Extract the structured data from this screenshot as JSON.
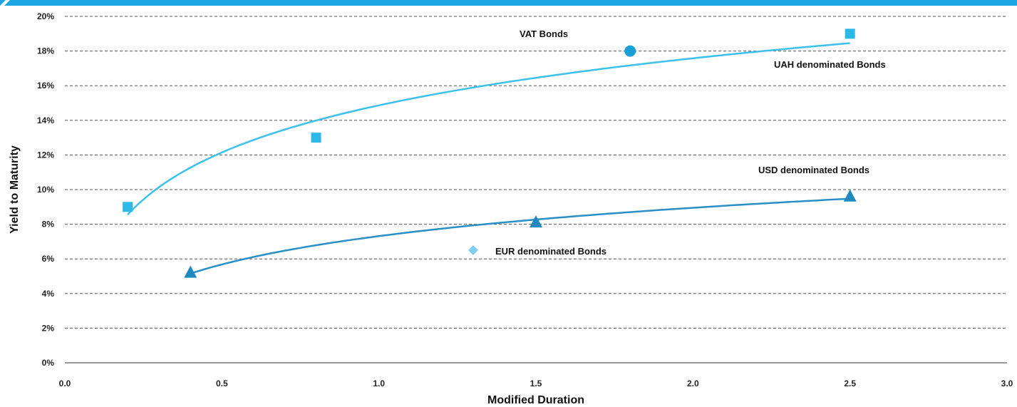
{
  "chart_data": {
    "type": "scatter",
    "xlabel": "Modified Duration",
    "ylabel": "Yield to Maturity",
    "xlim": [
      0,
      3
    ],
    "ylim": [
      0,
      20
    ],
    "x_ticks": [
      "0.0",
      "0.5",
      "1.0",
      "1.5",
      "2.0",
      "2.5",
      "3.0"
    ],
    "y_ticks": [
      "0%",
      "2%",
      "4%",
      "6%",
      "8%",
      "10%",
      "12%",
      "14%",
      "16%",
      "18%",
      "20%"
    ],
    "grid": "horizontal-dashed",
    "series": [
      {
        "name": "UAH denominated Bonds",
        "marker": "square",
        "color": "#2EB8E8",
        "points": [
          {
            "x": 0.2,
            "y": 9.0
          },
          {
            "x": 0.8,
            "y": 13.0
          },
          {
            "x": 2.5,
            "y": 19.0
          }
        ],
        "trend": {
          "type": "logarithmic",
          "x_from": 0.2,
          "x_to": 2.5,
          "color": "#3CC0EC"
        }
      },
      {
        "name": "VAT Bonds",
        "marker": "circle",
        "color": "#1A9FD8",
        "points": [
          {
            "x": 1.8,
            "y": 18.0
          }
        ]
      },
      {
        "name": "USD denominated Bonds",
        "marker": "triangle",
        "color": "#1E88BF",
        "points": [
          {
            "x": 0.4,
            "y": 5.2
          },
          {
            "x": 1.5,
            "y": 8.1
          },
          {
            "x": 2.5,
            "y": 9.6
          }
        ],
        "trend": {
          "type": "logarithmic",
          "x_from": 0.4,
          "x_to": 2.5,
          "color": "#2A8FC4"
        }
      },
      {
        "name": "EUR denominated Bonds",
        "marker": "diamond",
        "color": "#7FD0EE",
        "points": [
          {
            "x": 1.3,
            "y": 6.5
          }
        ]
      }
    ]
  }
}
